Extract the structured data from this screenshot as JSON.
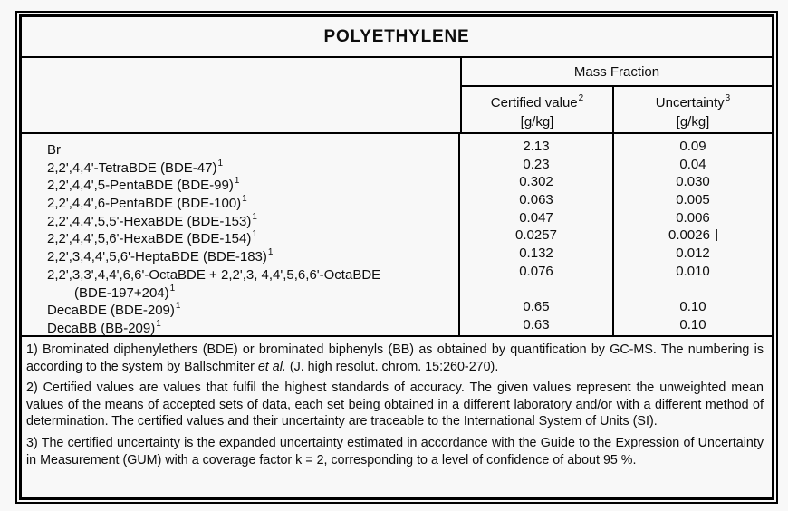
{
  "title": "POLYETHYLENE",
  "table": {
    "group_header": "Mass Fraction",
    "columns": [
      {
        "label": "Certified value",
        "sup": "2",
        "unit": "[g/kg]"
      },
      {
        "label": "Uncertainty",
        "sup": "3",
        "unit": "[g/kg]"
      }
    ],
    "rows": [
      {
        "name": "Br",
        "sup": "",
        "certified": "2.13",
        "uncertainty": "0.09"
      },
      {
        "name": "2,2',4,4'-TetraBDE (BDE-47)",
        "sup": "1",
        "certified": "0.23",
        "uncertainty": "0.04"
      },
      {
        "name": "2,2',4,4',5-PentaBDE (BDE-99)",
        "sup": "1",
        "certified": "0.302",
        "uncertainty": "0.030"
      },
      {
        "name": "2,2',4,4',6-PentaBDE (BDE-100)",
        "sup": "1",
        "certified": "0.063",
        "uncertainty": "0.005"
      },
      {
        "name": "2,2',4,4',5,5'-HexaBDE (BDE-153)",
        "sup": "1",
        "certified": "0.047",
        "uncertainty": "0.006"
      },
      {
        "name": "2,2',4,4',5,6'-HexaBDE (BDE-154)",
        "sup": "1",
        "certified": "0.0257",
        "uncertainty": "0.0026"
      },
      {
        "name": "2,2',3,4,4',5,6'-HeptaBDE (BDE-183)",
        "sup": "1",
        "certified": "0.132",
        "uncertainty": "0.012"
      },
      {
        "name": "2,2',3,3',4,4',6,6'-OctaBDE + 2,2',3, 4,4',5,6,6'-OctaBDE",
        "sup": "",
        "certified": "0.076",
        "uncertainty": "0.010"
      },
      {
        "name": "(BDE-197+204)",
        "sup": "1",
        "certified": "",
        "uncertainty": ""
      },
      {
        "name": "DecaBDE (BDE-209)",
        "sup": "1",
        "certified": "0.65",
        "uncertainty": "0.10"
      },
      {
        "name": "DecaBB (BB-209)",
        "sup": "1",
        "certified": "0.63",
        "uncertainty": "0.10"
      }
    ]
  },
  "footnotes": [
    {
      "pre": "1) Brominated diphenylethers (BDE) or brominated biphenyls (BB) as obtained by quantification by GC-MS. The numbering is according to the system by Ballschmiter ",
      "italic": "et al.",
      "post": " (J. high resolut. chrom. 15:260-270)."
    },
    {
      "pre": "2) Certified values are values that fulfil the highest standards of accuracy. The given values represent the unweighted mean values of the means of accepted sets of data, each set being obtained in a different laboratory and/or with a different method of determination. The certified values and their uncertainty are traceable to the International System of Units (SI).",
      "italic": "",
      "post": ""
    },
    {
      "pre": "3) The certified uncertainty is the expanded uncertainty estimated in accordance with the Guide to the Expression of Uncertainty in Measurement (GUM) with a coverage factor k = 2, corresponding to a level of confidence of about 95 %.",
      "italic": "",
      "post": ""
    }
  ],
  "colors": {
    "background": "#f8f8f8",
    "border": "#000000",
    "text": "#0d0d0d"
  }
}
